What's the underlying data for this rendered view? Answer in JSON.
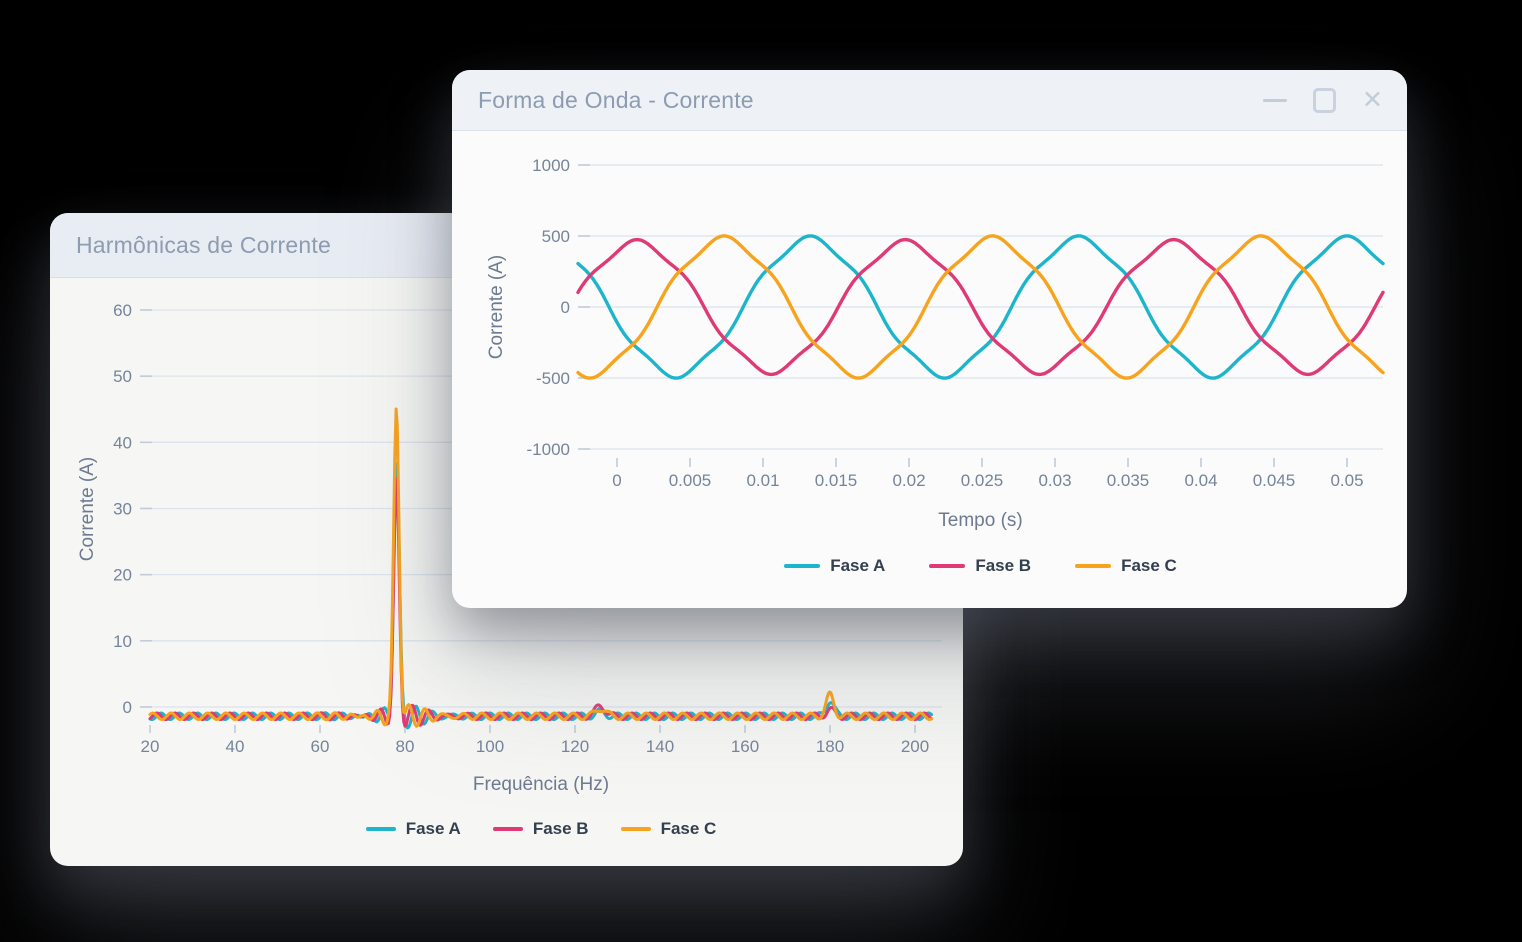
{
  "page": {
    "background": "#000000"
  },
  "back_window": {
    "title": "Harmônicas de Corrente"
  },
  "front_window": {
    "title": "Forma de Onda - Corrente",
    "controls": [
      "minimize",
      "maximize",
      "close"
    ]
  },
  "colors": {
    "fase_a": "#1cb5cb",
    "fase_b": "#df3a75",
    "fase_c": "#f8a31d",
    "grid": "#dce3ec",
    "tick_text": "#76849b"
  },
  "chart_data": [
    {
      "id": "harmonics",
      "type": "line",
      "title": "Harmônicas de Corrente",
      "xlabel": "Frequência (Hz)",
      "ylabel": "Corrente (A)",
      "xlim": [
        20,
        204
      ],
      "ylim": [
        -2,
        62
      ],
      "grid": true,
      "legend_position": "bottom",
      "x_tick_values": [
        20,
        40,
        60,
        80,
        100,
        120,
        140,
        160,
        180,
        200
      ],
      "x_tick_labels": [
        "20",
        "40",
        "60",
        "80",
        "100",
        "120",
        "140",
        "160",
        "180",
        "200"
      ],
      "y_tick_values": [
        0,
        10,
        20,
        30,
        40,
        50,
        60
      ],
      "y_tick_labels": [
        "0",
        "10",
        "20",
        "30",
        "40",
        "50",
        "60"
      ],
      "noise_floor": -1.4,
      "ripple": {
        "amplitude": 0.5,
        "wavelength_hz": 4.3,
        "near_peak_boost": 1.4,
        "near_peak_sigma_hz": 9
      },
      "series": [
        {
          "name": "Fase A",
          "color": "#1cb5cb",
          "ripple_phase": 0.0,
          "peaks": [
            {
              "freq_hz": 78,
              "amplitude_a": 38.5,
              "sigma_hz": 0.9
            },
            {
              "freq_hz": 126,
              "amplitude_a": 0.7,
              "sigma_hz": 1.6
            },
            {
              "freq_hz": 180,
              "amplitude_a": 2.4,
              "sigma_hz": 1.3
            }
          ]
        },
        {
          "name": "Fase B",
          "color": "#df3a75",
          "ripple_phase": 1.4,
          "peaks": [
            {
              "freq_hz": 78,
              "amplitude_a": 34.5,
              "sigma_hz": 0.9
            },
            {
              "freq_hz": 126,
              "amplitude_a": 1.6,
              "sigma_hz": 1.6
            },
            {
              "freq_hz": 180,
              "amplitude_a": 1.0,
              "sigma_hz": 1.3
            }
          ]
        },
        {
          "name": "Fase C",
          "color": "#f8a31d",
          "ripple_phase": 2.8,
          "peaks": [
            {
              "freq_hz": 78,
              "amplitude_a": 46.5,
              "sigma_hz": 0.9
            },
            {
              "freq_hz": 126,
              "amplitude_a": 1.2,
              "sigma_hz": 1.6
            },
            {
              "freq_hz": 180,
              "amplitude_a": 3.2,
              "sigma_hz": 1.3
            }
          ]
        }
      ]
    },
    {
      "id": "waveform",
      "type": "line",
      "title": "Forma de Onda - Corrente",
      "xlabel": "Tempo (s)",
      "ylabel": "Corrente (A)",
      "xlim": [
        -0.0027,
        0.0525
      ],
      "ylim": [
        -1000,
        1000
      ],
      "grid": true,
      "legend_position": "bottom",
      "x_tick_values": [
        0,
        0.005,
        0.01,
        0.015,
        0.02,
        0.025,
        0.03,
        0.035,
        0.04,
        0.045,
        0.05
      ],
      "x_tick_labels": [
        "0",
        "0.005",
        "0.01",
        "0.015",
        "0.02",
        "0.025",
        "0.03",
        "0.035",
        "0.04",
        "0.045",
        "0.05"
      ],
      "y_tick_values": [
        1000,
        500,
        0,
        -500,
        -1000
      ],
      "y_tick_labels": [
        "1000",
        "500",
        "0",
        "-500",
        "-1000"
      ],
      "frequency_hz": 54.4,
      "periods_visible": 3,
      "distortion_5th_harmonic": 0.05,
      "series": [
        {
          "name": "Fase A",
          "color": "#1cb5cb",
          "amplitude_a": 477,
          "phase_deg": 138.4
        },
        {
          "name": "Fase B",
          "color": "#df3a75",
          "amplitude_a": 452,
          "phase_deg": 10.8
        },
        {
          "name": "Fase C",
          "color": "#f8a31d",
          "amplitude_a": 477,
          "phase_deg": 253.9
        }
      ]
    }
  ]
}
